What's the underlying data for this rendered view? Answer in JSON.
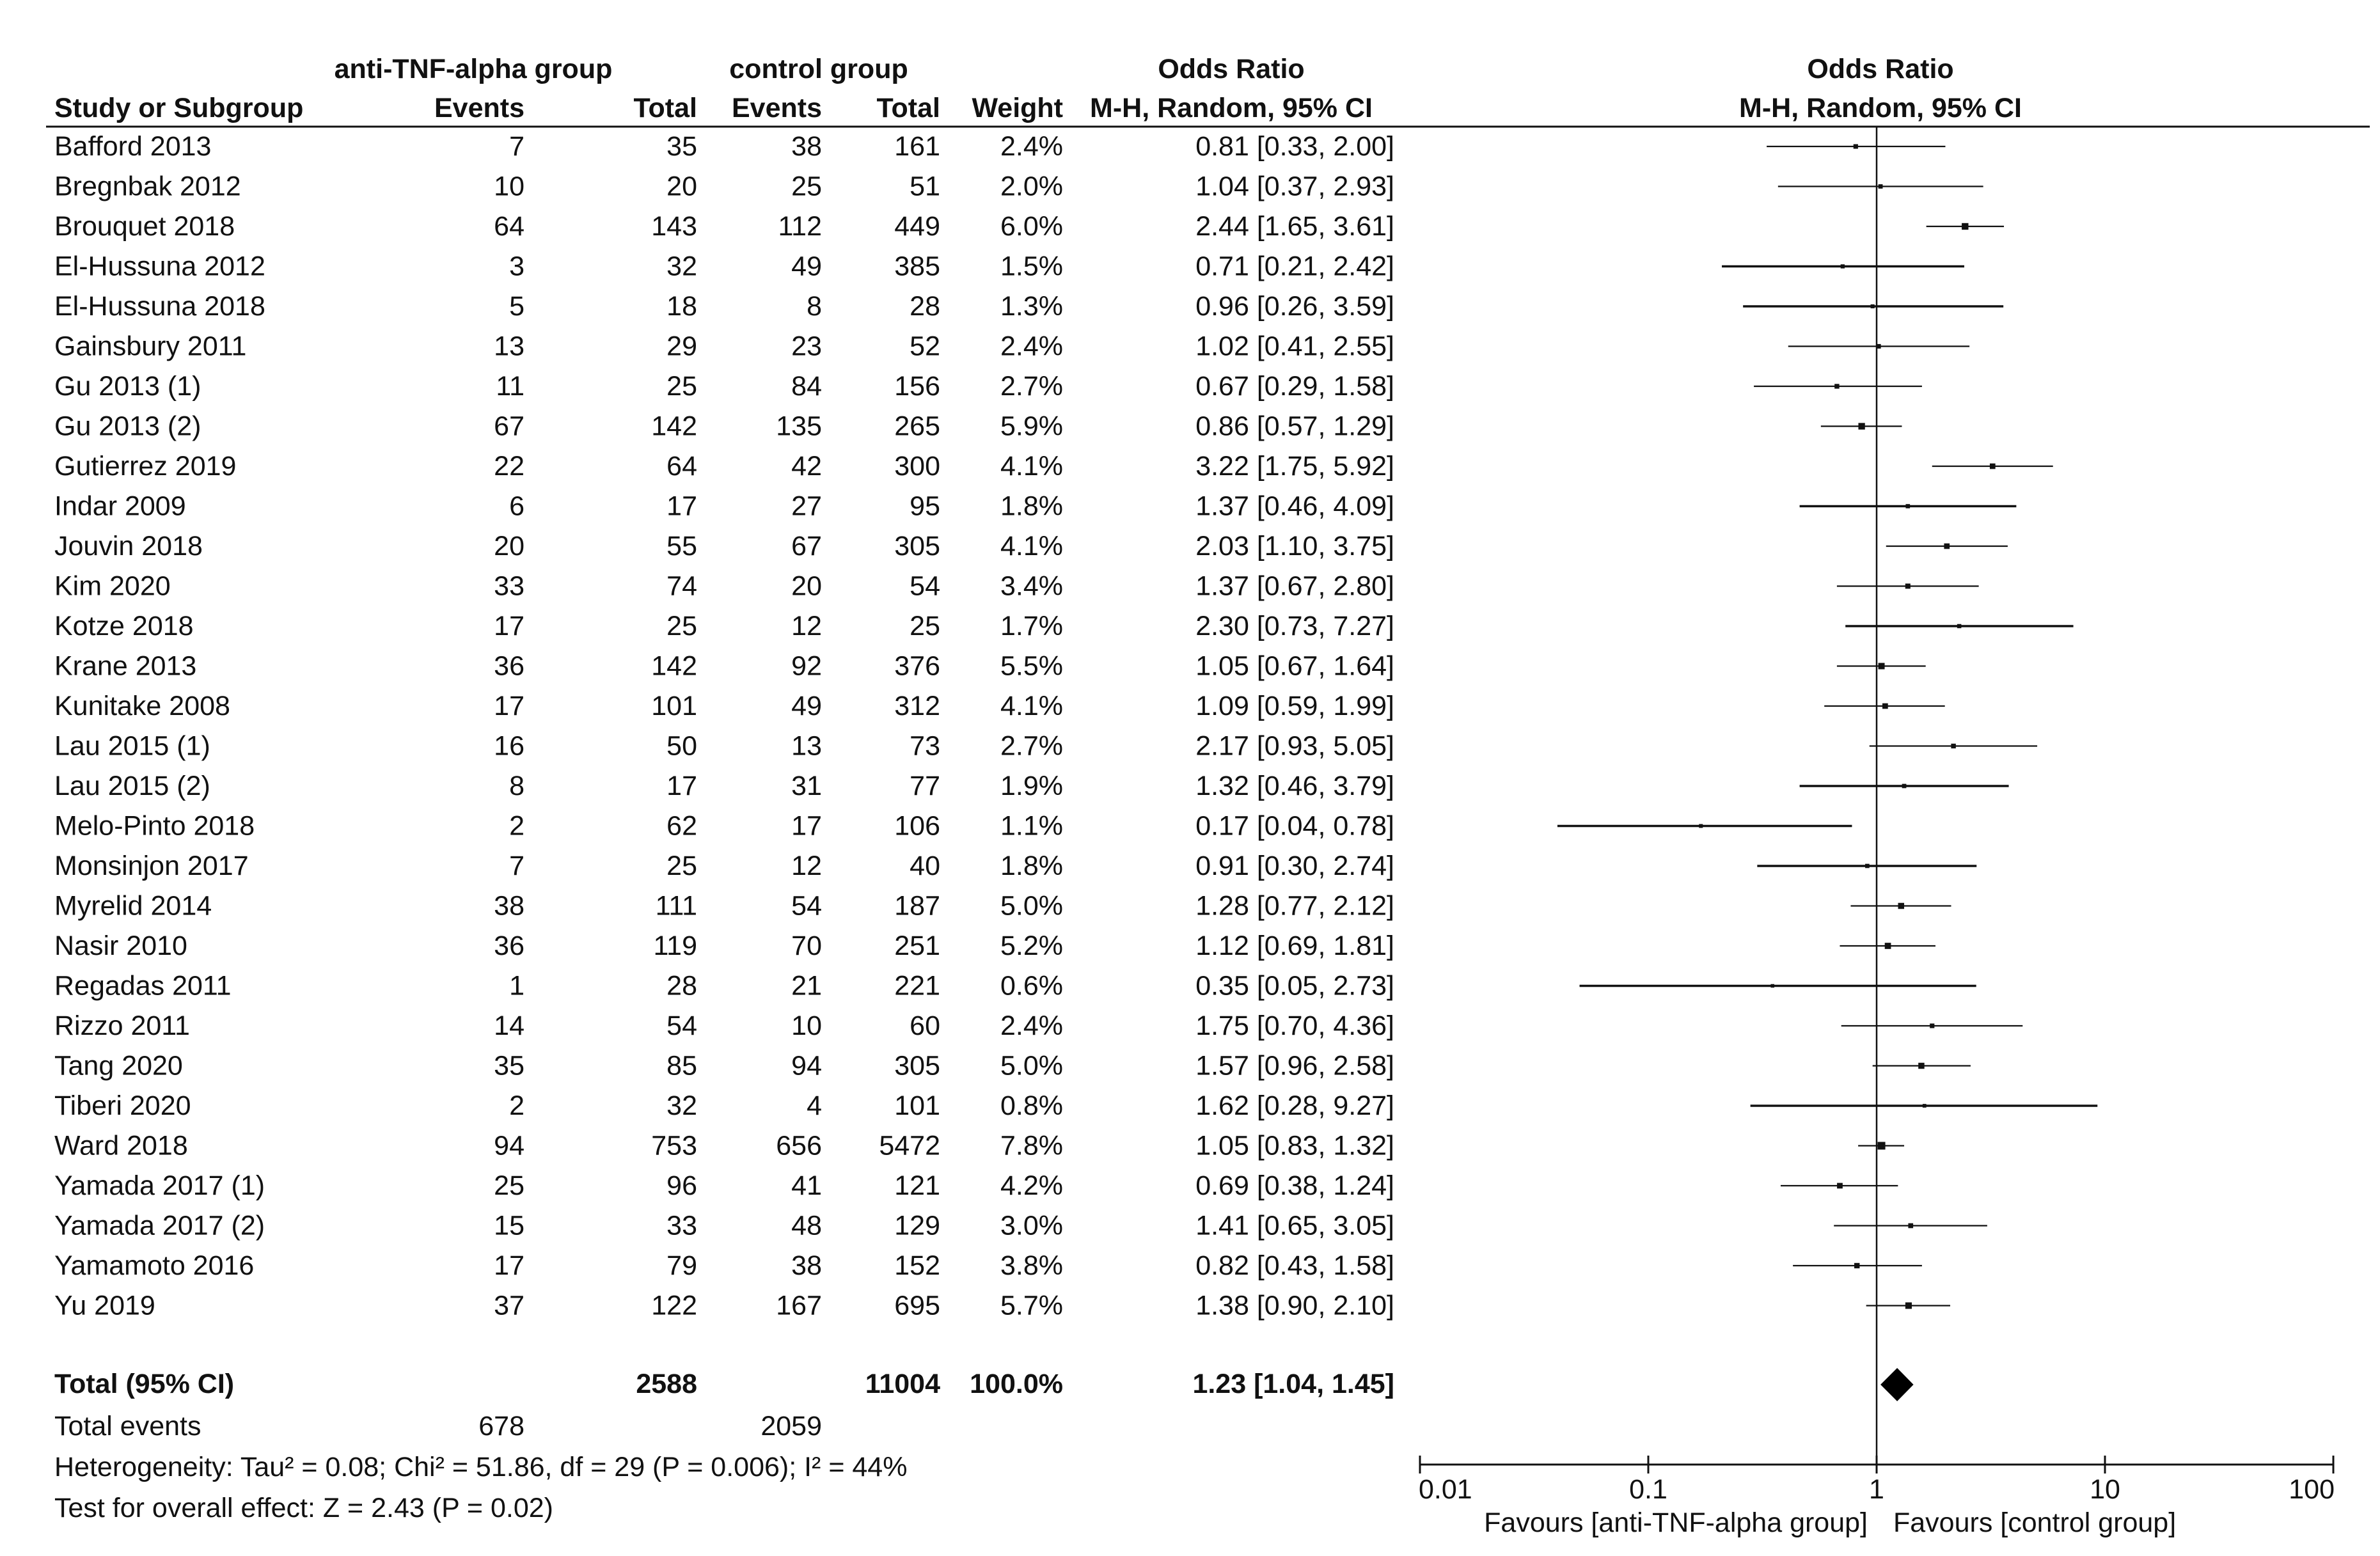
{
  "chart_data": {
    "type": "forest",
    "headers": {
      "study": "Study or Subgroup",
      "group1": "anti-TNF-alpha group",
      "group2": "control group",
      "events": "Events",
      "total": "Total",
      "weight": "Weight",
      "or_title": "Odds Ratio",
      "or_method": "M-H, Random, 95% CI",
      "plot_title": "Odds Ratio",
      "plot_method": "M-H, Random, 95% CI"
    },
    "studies": [
      {
        "name": "Bafford 2013",
        "e1": "7",
        "t1": "35",
        "e2": "38",
        "t2": "161",
        "weight": "2.4%",
        "ci_text": "0.81 [0.33, 2.00]",
        "or": 0.81,
        "lo": 0.33,
        "hi": 2.0
      },
      {
        "name": "Bregnbak 2012",
        "e1": "10",
        "t1": "20",
        "e2": "25",
        "t2": "51",
        "weight": "2.0%",
        "ci_text": "1.04 [0.37, 2.93]",
        "or": 1.04,
        "lo": 0.37,
        "hi": 2.93
      },
      {
        "name": "Brouquet 2018",
        "e1": "64",
        "t1": "143",
        "e2": "112",
        "t2": "449",
        "weight": "6.0%",
        "ci_text": "2.44 [1.65, 3.61]",
        "or": 2.44,
        "lo": 1.65,
        "hi": 3.61
      },
      {
        "name": "El-Hussuna 2012",
        "e1": "3",
        "t1": "32",
        "e2": "49",
        "t2": "385",
        "weight": "1.5%",
        "ci_text": "0.71 [0.21, 2.42]",
        "or": 0.71,
        "lo": 0.21,
        "hi": 2.42
      },
      {
        "name": "El-Hussuna 2018",
        "e1": "5",
        "t1": "18",
        "e2": "8",
        "t2": "28",
        "weight": "1.3%",
        "ci_text": "0.96 [0.26, 3.59]",
        "or": 0.96,
        "lo": 0.26,
        "hi": 3.59
      },
      {
        "name": "Gainsbury 2011",
        "e1": "13",
        "t1": "29",
        "e2": "23",
        "t2": "52",
        "weight": "2.4%",
        "ci_text": "1.02 [0.41, 2.55]",
        "or": 1.02,
        "lo": 0.41,
        "hi": 2.55
      },
      {
        "name": "Gu 2013 (1)",
        "e1": "11",
        "t1": "25",
        "e2": "84",
        "t2": "156",
        "weight": "2.7%",
        "ci_text": "0.67 [0.29, 1.58]",
        "or": 0.67,
        "lo": 0.29,
        "hi": 1.58
      },
      {
        "name": "Gu 2013 (2)",
        "e1": "67",
        "t1": "142",
        "e2": "135",
        "t2": "265",
        "weight": "5.9%",
        "ci_text": "0.86 [0.57, 1.29]",
        "or": 0.86,
        "lo": 0.57,
        "hi": 1.29
      },
      {
        "name": "Gutierrez 2019",
        "e1": "22",
        "t1": "64",
        "e2": "42",
        "t2": "300",
        "weight": "4.1%",
        "ci_text": "3.22 [1.75, 5.92]",
        "or": 3.22,
        "lo": 1.75,
        "hi": 5.92
      },
      {
        "name": "Indar 2009",
        "e1": "6",
        "t1": "17",
        "e2": "27",
        "t2": "95",
        "weight": "1.8%",
        "ci_text": "1.37 [0.46, 4.09]",
        "or": 1.37,
        "lo": 0.46,
        "hi": 4.09
      },
      {
        "name": "Jouvin 2018",
        "e1": "20",
        "t1": "55",
        "e2": "67",
        "t2": "305",
        "weight": "4.1%",
        "ci_text": "2.03 [1.10, 3.75]",
        "or": 2.03,
        "lo": 1.1,
        "hi": 3.75
      },
      {
        "name": "Kim 2020",
        "e1": "33",
        "t1": "74",
        "e2": "20",
        "t2": "54",
        "weight": "3.4%",
        "ci_text": "1.37 [0.67, 2.80]",
        "or": 1.37,
        "lo": 0.67,
        "hi": 2.8
      },
      {
        "name": "Kotze 2018",
        "e1": "17",
        "t1": "25",
        "e2": "12",
        "t2": "25",
        "weight": "1.7%",
        "ci_text": "2.30 [0.73, 7.27]",
        "or": 2.3,
        "lo": 0.73,
        "hi": 7.27
      },
      {
        "name": "Krane 2013",
        "e1": "36",
        "t1": "142",
        "e2": "92",
        "t2": "376",
        "weight": "5.5%",
        "ci_text": "1.05 [0.67, 1.64]",
        "or": 1.05,
        "lo": 0.67,
        "hi": 1.64
      },
      {
        "name": "Kunitake 2008",
        "e1": "17",
        "t1": "101",
        "e2": "49",
        "t2": "312",
        "weight": "4.1%",
        "ci_text": "1.09 [0.59, 1.99]",
        "or": 1.09,
        "lo": 0.59,
        "hi": 1.99
      },
      {
        "name": "Lau 2015 (1)",
        "e1": "16",
        "t1": "50",
        "e2": "13",
        "t2": "73",
        "weight": "2.7%",
        "ci_text": "2.17 [0.93, 5.05]",
        "or": 2.17,
        "lo": 0.93,
        "hi": 5.05
      },
      {
        "name": "Lau 2015 (2)",
        "e1": "8",
        "t1": "17",
        "e2": "31",
        "t2": "77",
        "weight": "1.9%",
        "ci_text": "1.32 [0.46, 3.79]",
        "or": 1.32,
        "lo": 0.46,
        "hi": 3.79
      },
      {
        "name": "Melo-Pinto 2018",
        "e1": "2",
        "t1": "62",
        "e2": "17",
        "t2": "106",
        "weight": "1.1%",
        "ci_text": "0.17 [0.04, 0.78]",
        "or": 0.17,
        "lo": 0.04,
        "hi": 0.78
      },
      {
        "name": "Monsinjon 2017",
        "e1": "7",
        "t1": "25",
        "e2": "12",
        "t2": "40",
        "weight": "1.8%",
        "ci_text": "0.91 [0.30, 2.74]",
        "or": 0.91,
        "lo": 0.3,
        "hi": 2.74
      },
      {
        "name": "Myrelid 2014",
        "e1": "38",
        "t1": "111",
        "e2": "54",
        "t2": "187",
        "weight": "5.0%",
        "ci_text": "1.28 [0.77, 2.12]",
        "or": 1.28,
        "lo": 0.77,
        "hi": 2.12
      },
      {
        "name": "Nasir 2010",
        "e1": "36",
        "t1": "119",
        "e2": "70",
        "t2": "251",
        "weight": "5.2%",
        "ci_text": "1.12 [0.69, 1.81]",
        "or": 1.12,
        "lo": 0.69,
        "hi": 1.81
      },
      {
        "name": "Regadas 2011",
        "e1": "1",
        "t1": "28",
        "e2": "21",
        "t2": "221",
        "weight": "0.6%",
        "ci_text": "0.35 [0.05, 2.73]",
        "or": 0.35,
        "lo": 0.05,
        "hi": 2.73
      },
      {
        "name": "Rizzo 2011",
        "e1": "14",
        "t1": "54",
        "e2": "10",
        "t2": "60",
        "weight": "2.4%",
        "ci_text": "1.75 [0.70, 4.36]",
        "or": 1.75,
        "lo": 0.7,
        "hi": 4.36
      },
      {
        "name": "Tang 2020",
        "e1": "35",
        "t1": "85",
        "e2": "94",
        "t2": "305",
        "weight": "5.0%",
        "ci_text": "1.57 [0.96, 2.58]",
        "or": 1.57,
        "lo": 0.96,
        "hi": 2.58
      },
      {
        "name": "Tiberi 2020",
        "e1": "2",
        "t1": "32",
        "e2": "4",
        "t2": "101",
        "weight": "0.8%",
        "ci_text": "1.62 [0.28, 9.27]",
        "or": 1.62,
        "lo": 0.28,
        "hi": 9.27
      },
      {
        "name": "Ward 2018",
        "e1": "94",
        "t1": "753",
        "e2": "656",
        "t2": "5472",
        "weight": "7.8%",
        "ci_text": "1.05 [0.83, 1.32]",
        "or": 1.05,
        "lo": 0.83,
        "hi": 1.32
      },
      {
        "name": "Yamada 2017 (1)",
        "e1": "25",
        "t1": "96",
        "e2": "41",
        "t2": "121",
        "weight": "4.2%",
        "ci_text": "0.69 [0.38, 1.24]",
        "or": 0.69,
        "lo": 0.38,
        "hi": 1.24
      },
      {
        "name": "Yamada 2017 (2)",
        "e1": "15",
        "t1": "33",
        "e2": "48",
        "t2": "129",
        "weight": "3.0%",
        "ci_text": "1.41 [0.65, 3.05]",
        "or": 1.41,
        "lo": 0.65,
        "hi": 3.05
      },
      {
        "name": "Yamamoto 2016",
        "e1": "17",
        "t1": "79",
        "e2": "38",
        "t2": "152",
        "weight": "3.8%",
        "ci_text": "0.82 [0.43, 1.58]",
        "or": 0.82,
        "lo": 0.43,
        "hi": 1.58
      },
      {
        "name": "Yu 2019",
        "e1": "37",
        "t1": "122",
        "e2": "167",
        "t2": "695",
        "weight": "5.7%",
        "ci_text": "1.38 [0.90, 2.10]",
        "or": 1.38,
        "lo": 0.9,
        "hi": 2.1
      }
    ],
    "total": {
      "label": "Total (95% CI)",
      "t1": "2588",
      "t2": "11004",
      "weight": "100.0%",
      "ci_text": "1.23 [1.04, 1.45]",
      "or": 1.23,
      "lo": 1.04,
      "hi": 1.45
    },
    "total_events": {
      "label": "Total events",
      "e1": "678",
      "e2": "2059"
    },
    "heterogeneity": "Heterogeneity: Tau² = 0.08; Chi² = 51.86, df = 29 (P = 0.006); I² = 44%",
    "overall_effect": "Test for overall effect: Z = 2.43 (P = 0.02)",
    "axis": {
      "scale": "log",
      "min": 0.01,
      "max": 100,
      "ticks": [
        "0.01",
        "0.1",
        "1",
        "10",
        "100"
      ],
      "tick_values": [
        0.01,
        0.1,
        1,
        10,
        100
      ]
    },
    "favours_left": "Favours [anti-TNF-alpha group]",
    "favours_right": "Favours [control group]"
  }
}
